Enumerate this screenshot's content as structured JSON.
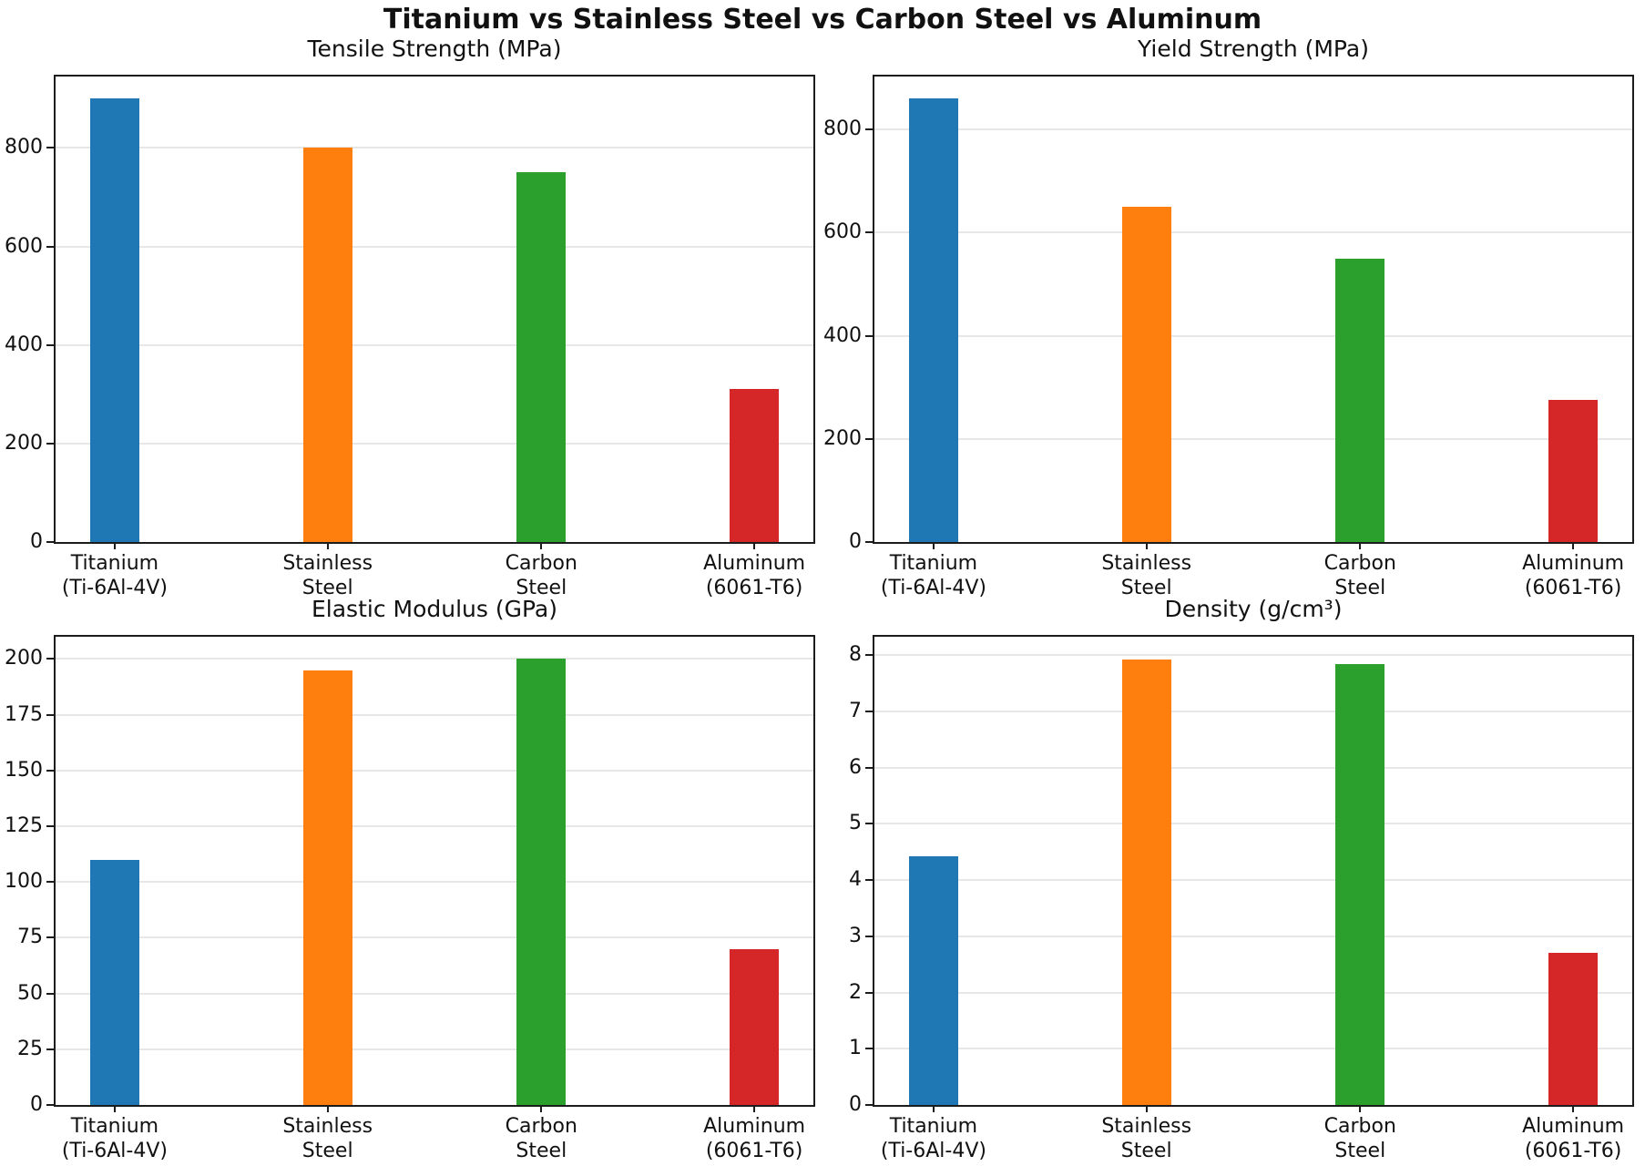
{
  "title": "Titanium vs Stainless Steel vs Carbon Steel vs Aluminum",
  "palette": {
    "titanium": "#1f77b4",
    "stainless_steel": "#ff7f0e",
    "carbon_steel": "#2ca02c",
    "aluminum": "#d62728"
  },
  "chart_data": [
    {
      "type": "bar",
      "title": "Tensile Strength (MPa)",
      "categories": [
        "Titanium\n(Ti-6Al-4V)",
        "Stainless\nSteel",
        "Carbon\nSteel",
        "Aluminum\n(6061-T6)"
      ],
      "values": [
        900,
        800,
        750,
        310
      ],
      "xlabel": "",
      "ylabel": "",
      "ylim": [
        0,
        945
      ],
      "yticks": [
        0,
        200,
        400,
        600,
        800
      ],
      "bar_colors": [
        "#1f77b4",
        "#ff7f0e",
        "#2ca02c",
        "#d62728"
      ],
      "grid": true,
      "legend": "none"
    },
    {
      "type": "bar",
      "title": "Yield Strength (MPa)",
      "categories": [
        "Titanium\n(Ti-6Al-4V)",
        "Stainless\nSteel",
        "Carbon\nSteel",
        "Aluminum\n(6061-T6)"
      ],
      "values": [
        860,
        650,
        550,
        275
      ],
      "xlabel": "",
      "ylabel": "",
      "ylim": [
        0,
        903
      ],
      "yticks": [
        0,
        200,
        400,
        600,
        800
      ],
      "bar_colors": [
        "#1f77b4",
        "#ff7f0e",
        "#2ca02c",
        "#d62728"
      ],
      "grid": true,
      "legend": "none"
    },
    {
      "type": "bar",
      "title": "Elastic Modulus (GPa)",
      "categories": [
        "Titanium\n(Ti-6Al-4V)",
        "Stainless\nSteel",
        "Carbon\nSteel",
        "Aluminum\n(6061-T6)"
      ],
      "values": [
        110,
        195,
        200,
        70
      ],
      "xlabel": "",
      "ylabel": "",
      "ylim": [
        0,
        210
      ],
      "yticks": [
        0,
        25,
        50,
        75,
        100,
        125,
        150,
        175,
        200
      ],
      "bar_colors": [
        "#1f77b4",
        "#ff7f0e",
        "#2ca02c",
        "#d62728"
      ],
      "grid": true,
      "legend": "none"
    },
    {
      "type": "bar",
      "title": "Density (g/cm³)",
      "categories": [
        "Titanium\n(Ti-6Al-4V)",
        "Stainless\nSteel",
        "Carbon\nSteel",
        "Aluminum\n(6061-T6)"
      ],
      "values": [
        4.43,
        7.93,
        7.85,
        2.7
      ],
      "xlabel": "",
      "ylabel": "",
      "ylim": [
        0,
        8.33
      ],
      "yticks": [
        0,
        1,
        2,
        3,
        4,
        5,
        6,
        7,
        8
      ],
      "bar_colors": [
        "#1f77b4",
        "#ff7f0e",
        "#2ca02c",
        "#d62728"
      ],
      "grid": true,
      "legend": "none"
    }
  ]
}
